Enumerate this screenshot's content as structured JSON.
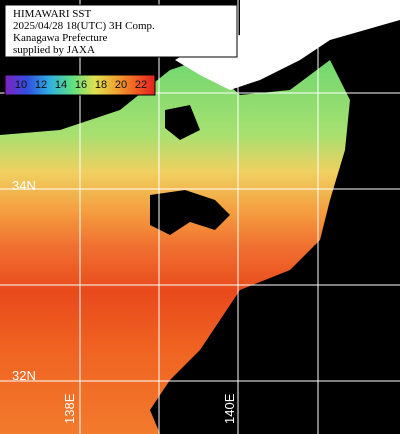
{
  "title": {
    "lines": [
      "HIMAWARI SST",
      "2025/04/28 18(UTC) 3H Comp.",
      "Kanagawa Prefecture",
      "supplied by JAXA"
    ]
  },
  "colorbar": {
    "labels": [
      10,
      12,
      14,
      16,
      18,
      20,
      22
    ]
  },
  "grid": {
    "latitudes": [
      "34N",
      "32N"
    ],
    "longitudes": [
      "138E",
      "140E"
    ]
  }
}
